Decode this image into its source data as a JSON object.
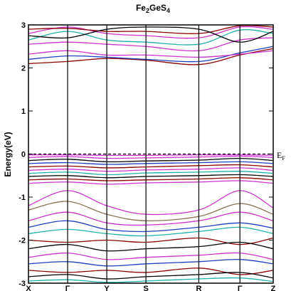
{
  "chart_data": {
    "type": "line",
    "title": "Fe",
    "title_sub1": "2",
    "title_mid": "GeS",
    "title_sub2": "4",
    "ylabel": "Energy(eV)",
    "ylim": [
      -3,
      3
    ],
    "yticks": [
      -3,
      -2,
      -1,
      0,
      1,
      2,
      3
    ],
    "fermi_level": 0,
    "fermi_label": "E",
    "fermi_label_sub": "F",
    "kpoints": [
      {
        "label": "X",
        "x": 0
      },
      {
        "label": "Γ",
        "x": 1
      },
      {
        "label": "Y",
        "x": 2
      },
      {
        "label": "S",
        "x": 3
      },
      {
        "label": "R",
        "x": 4.35
      },
      {
        "label": "Γ",
        "x": 5.4
      },
      {
        "label": "Z",
        "x": 6.25
      }
    ],
    "series": [
      {
        "color": "#8b0000",
        "values": [
          2.1,
          2.15,
          2.22,
          2.18,
          2.08,
          2.3,
          2.45
        ]
      },
      {
        "color": "#1f3fbf",
        "values": [
          2.2,
          2.28,
          2.25,
          2.2,
          2.15,
          2.35,
          2.5
        ]
      },
      {
        "color": "#cc33cc",
        "values": [
          2.32,
          2.4,
          2.3,
          2.3,
          2.25,
          2.32,
          2.4
        ]
      },
      {
        "color": "#cc33cc",
        "values": [
          2.55,
          2.6,
          2.55,
          2.5,
          2.4,
          2.65,
          2.7
        ]
      },
      {
        "color": "#20b2aa",
        "values": [
          2.65,
          2.85,
          2.65,
          2.6,
          2.55,
          2.88,
          2.8
        ]
      },
      {
        "color": "#cc33cc",
        "values": [
          2.8,
          2.95,
          2.8,
          2.75,
          2.7,
          2.95,
          2.9
        ]
      },
      {
        "color": "#8b0000",
        "values": [
          2.9,
          2.92,
          2.85,
          2.85,
          2.8,
          2.98,
          2.95
        ]
      },
      {
        "color": "#000000",
        "values": [
          2.75,
          2.7,
          2.9,
          2.95,
          2.9,
          2.6,
          2.85
        ]
      },
      {
        "color": "#cc33cc",
        "values": [
          -0.02,
          -0.02,
          -0.03,
          -0.03,
          -0.02,
          -0.02,
          -0.03
        ]
      },
      {
        "color": "#cc33cc",
        "values": [
          -0.08,
          -0.06,
          -0.1,
          -0.09,
          -0.07,
          -0.05,
          -0.08
        ]
      },
      {
        "color": "#000000",
        "values": [
          -0.15,
          -0.12,
          -0.18,
          -0.16,
          -0.14,
          -0.1,
          -0.15
        ]
      },
      {
        "color": "#1f3fbf",
        "values": [
          -0.22,
          -0.2,
          -0.24,
          -0.22,
          -0.2,
          -0.18,
          -0.22
        ]
      },
      {
        "color": "#8b0000",
        "values": [
          -0.3,
          -0.28,
          -0.32,
          -0.3,
          -0.27,
          -0.25,
          -0.3
        ]
      },
      {
        "color": "#cc33cc",
        "values": [
          -0.38,
          -0.35,
          -0.4,
          -0.37,
          -0.35,
          -0.32,
          -0.38
        ]
      },
      {
        "color": "#20b2aa",
        "values": [
          -0.45,
          -0.42,
          -0.48,
          -0.44,
          -0.42,
          -0.4,
          -0.45
        ]
      },
      {
        "color": "#000000",
        "values": [
          -0.52,
          -0.5,
          -0.55,
          -0.52,
          -0.5,
          -0.48,
          -0.52
        ]
      },
      {
        "color": "#8b0000",
        "values": [
          -0.6,
          -0.58,
          -0.62,
          -0.6,
          -0.58,
          -0.55,
          -0.6
        ]
      },
      {
        "color": "#cc33cc",
        "values": [
          -0.68,
          -0.65,
          -0.7,
          -0.67,
          -0.65,
          -0.62,
          -0.68
        ]
      },
      {
        "color": "#cc33cc",
        "values": [
          -1.2,
          -0.85,
          -1.2,
          -1.4,
          -1.3,
          -0.85,
          -1.25
        ]
      },
      {
        "color": "#8b7355",
        "values": [
          -1.3,
          -1.1,
          -1.4,
          -1.55,
          -1.45,
          -1.15,
          -1.4
        ]
      },
      {
        "color": "#cc33cc",
        "values": [
          -1.55,
          -1.35,
          -1.6,
          -1.65,
          -1.55,
          -1.35,
          -1.55
        ]
      },
      {
        "color": "#1f3fbf",
        "values": [
          -1.7,
          -1.55,
          -1.75,
          -1.8,
          -1.7,
          -1.6,
          -1.72
        ]
      },
      {
        "color": "#20b2aa",
        "values": [
          -1.85,
          -1.75,
          -1.85,
          -1.9,
          -1.8,
          -1.7,
          -1.85
        ]
      },
      {
        "color": "#8b0000",
        "values": [
          -2.0,
          -2.05,
          -2.0,
          -2.05,
          -1.95,
          -2.1,
          -1.95
        ]
      },
      {
        "color": "#000000",
        "values": [
          -2.2,
          -2.1,
          -2.25,
          -2.2,
          -2.15,
          -2.05,
          -2.2
        ]
      },
      {
        "color": "#cc33cc",
        "values": [
          -2.4,
          -2.3,
          -2.45,
          -2.4,
          -2.35,
          -2.3,
          -2.45
        ]
      },
      {
        "color": "#1f3fbf",
        "values": [
          -2.55,
          -2.5,
          -2.6,
          -2.55,
          -2.5,
          -2.45,
          -2.55
        ]
      },
      {
        "color": "#8b0000",
        "values": [
          -2.7,
          -2.75,
          -2.7,
          -2.75,
          -2.65,
          -2.8,
          -2.7
        ]
      },
      {
        "color": "#000000",
        "values": [
          -2.85,
          -2.8,
          -2.9,
          -2.85,
          -2.8,
          -2.75,
          -2.88
        ]
      },
      {
        "color": "#20b2aa",
        "values": [
          -2.95,
          -2.92,
          -2.98,
          -2.95,
          -2.9,
          -2.88,
          -2.96
        ]
      }
    ],
    "colors": {
      "axis": "#000000",
      "fermi": "#000000"
    }
  }
}
